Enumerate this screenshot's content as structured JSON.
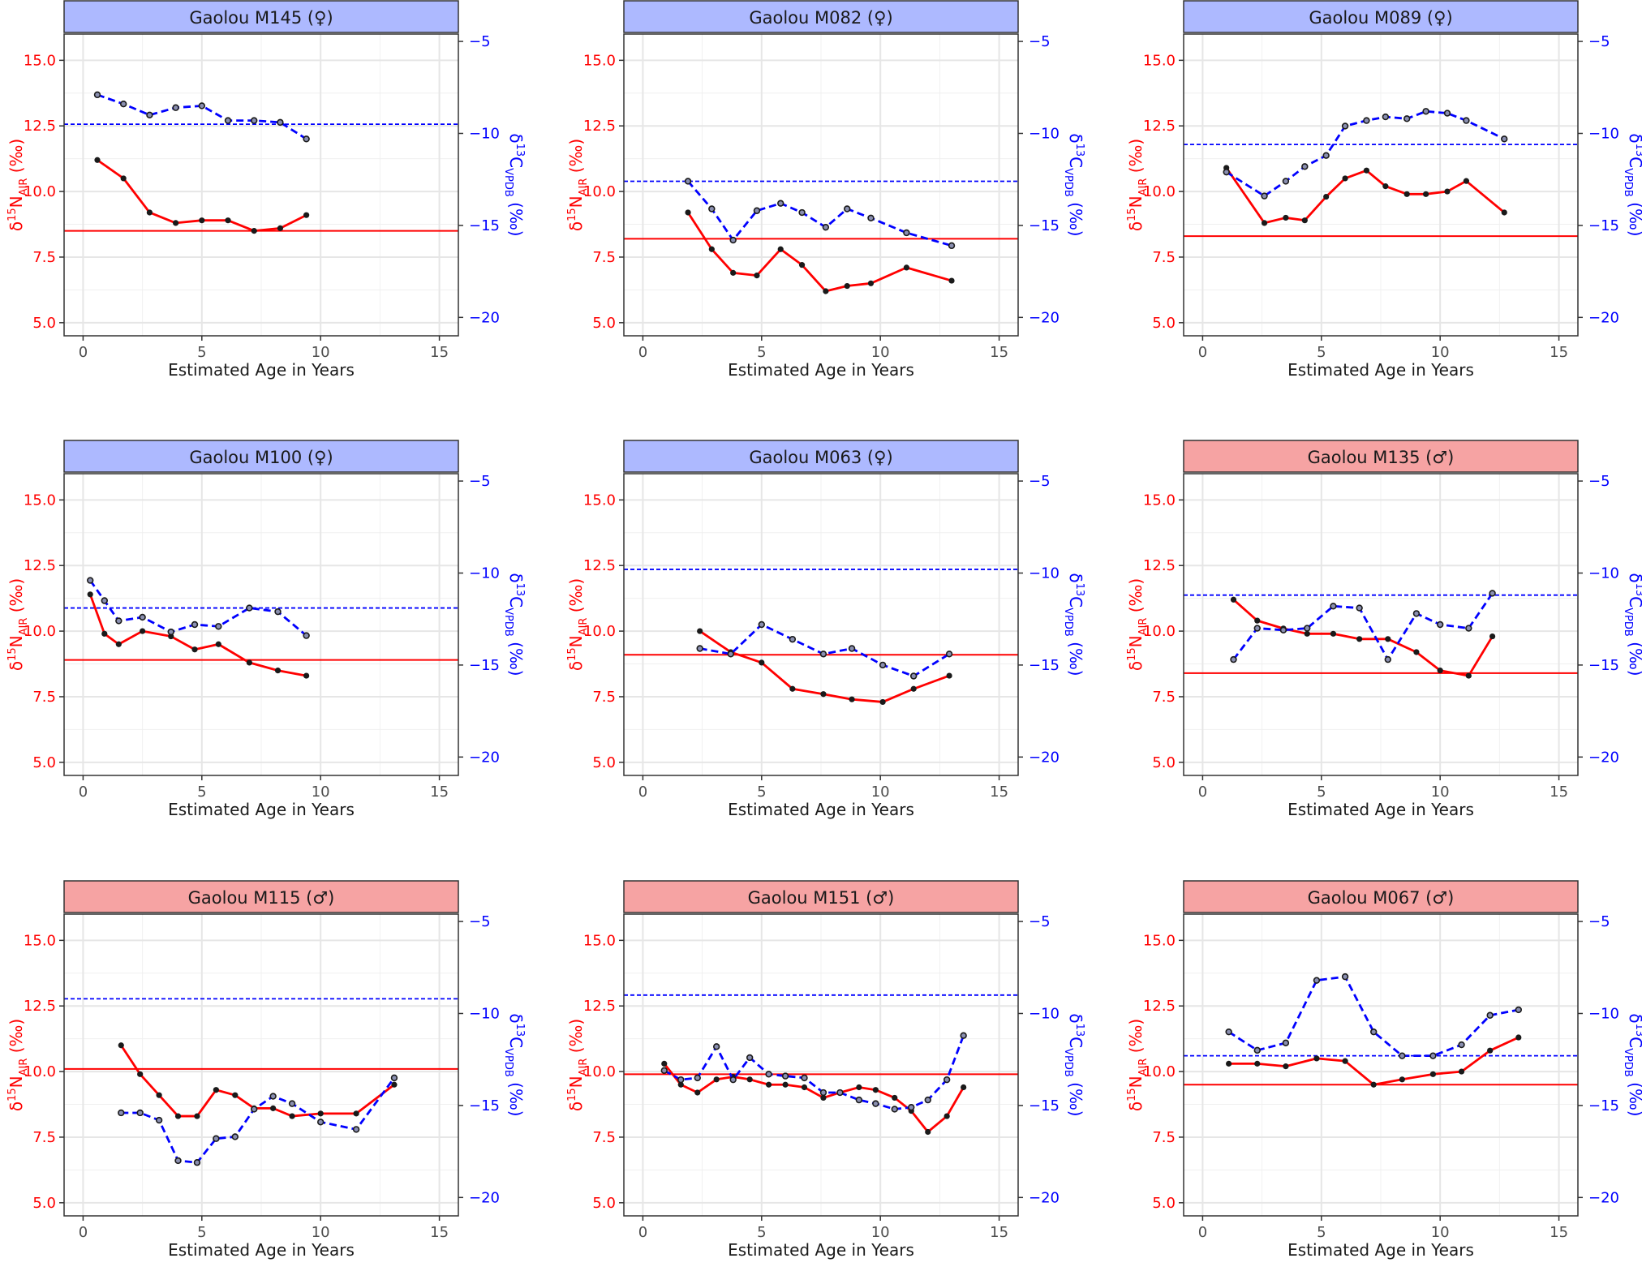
{
  "figure": {
    "colors": {
      "n_series": "#ff0000",
      "c_series": "#0000ff",
      "female_strip": "#adb9ff",
      "male_strip": "#f6a3a3",
      "grid": "#e6e6e6",
      "point": "#1a1a1a"
    }
  },
  "chart_data": [
    {
      "type": "line",
      "title": "Gaolou M145 (♀)",
      "sex": "female",
      "xlabel": "Estimated Age in Years",
      "ylabel_left": "δ15NAIR (‰)",
      "ylabel_right": "δ13CVPDB (‰)",
      "xlim": [
        -0.8,
        15.8
      ],
      "ylim": [
        4.5,
        16.0
      ],
      "ylim_right": [
        -21,
        -4.6
      ],
      "x_ticks": [
        0,
        5,
        10,
        15
      ],
      "y_ticks": [
        5.0,
        7.5,
        10.0,
        12.5,
        15.0
      ],
      "y_ticks_right": [
        -20,
        -15,
        -10,
        -5
      ],
      "series": [
        {
          "axis": "left",
          "style": "solid",
          "x": [
            0.6,
            1.7,
            2.8,
            3.9,
            5.0,
            6.1,
            7.2,
            8.3,
            9.4
          ],
          "values": [
            11.2,
            10.5,
            9.2,
            8.8,
            8.9,
            8.9,
            8.5,
            8.6,
            9.1
          ]
        },
        {
          "axis": "right",
          "style": "dashed",
          "x": [
            0.6,
            1.7,
            2.8,
            3.9,
            5.0,
            6.1,
            7.2,
            8.3,
            9.4
          ],
          "values": [
            -7.9,
            -8.4,
            -9.0,
            -8.6,
            -8.5,
            -9.3,
            -9.3,
            -9.4,
            -10.3
          ]
        }
      ],
      "hlines": [
        {
          "axis": "left",
          "value": 8.5
        },
        {
          "axis": "right",
          "value": -9.5
        }
      ]
    },
    {
      "type": "line",
      "title": "Gaolou M082 (♀)",
      "sex": "female",
      "xlabel": "Estimated Age in Years",
      "ylabel_left": "δ15NAIR (‰)",
      "ylabel_right": "δ13CVPDB (‰)",
      "xlim": [
        -0.8,
        15.8
      ],
      "ylim": [
        4.5,
        16.0
      ],
      "ylim_right": [
        -21,
        -4.6
      ],
      "x_ticks": [
        0,
        5,
        10,
        15
      ],
      "y_ticks": [
        5.0,
        7.5,
        10.0,
        12.5,
        15.0
      ],
      "y_ticks_right": [
        -20,
        -15,
        -10,
        -5
      ],
      "series": [
        {
          "axis": "left",
          "style": "solid",
          "x": [
            1.9,
            2.9,
            3.8,
            4.8,
            5.8,
            6.7,
            7.7,
            8.6,
            9.6,
            11.1,
            13.0
          ],
          "values": [
            9.2,
            7.8,
            6.9,
            6.8,
            7.8,
            7.2,
            6.2,
            6.4,
            6.5,
            7.1,
            6.6
          ]
        },
        {
          "axis": "right",
          "style": "dashed",
          "x": [
            1.9,
            2.9,
            3.8,
            4.8,
            5.8,
            6.7,
            7.7,
            8.6,
            9.6,
            11.1,
            13.0
          ],
          "values": [
            -12.6,
            -14.1,
            -15.8,
            -14.2,
            -13.8,
            -14.3,
            -15.1,
            -14.1,
            -14.6,
            -15.4,
            -16.1
          ]
        }
      ],
      "hlines": [
        {
          "axis": "left",
          "value": 8.2
        },
        {
          "axis": "right",
          "value": -12.6
        }
      ]
    },
    {
      "type": "line",
      "title": "Gaolou M089 (♀)",
      "sex": "female",
      "xlabel": "Estimated Age in Years",
      "ylabel_left": "δ15NAIR (‰)",
      "ylabel_right": "δ13CVPDB (‰)",
      "xlim": [
        -0.8,
        15.8
      ],
      "ylim": [
        4.5,
        16.0
      ],
      "ylim_right": [
        -21,
        -4.6
      ],
      "x_ticks": [
        0,
        5,
        10,
        15
      ],
      "y_ticks": [
        5.0,
        7.5,
        10.0,
        12.5,
        15.0
      ],
      "y_ticks_right": [
        -20,
        -15,
        -10,
        -5
      ],
      "series": [
        {
          "axis": "left",
          "style": "solid",
          "x": [
            1.0,
            2.6,
            3.5,
            4.3,
            5.2,
            6.0,
            6.9,
            7.7,
            8.6,
            9.4,
            10.3,
            11.1,
            12.7
          ],
          "values": [
            10.9,
            8.8,
            9.0,
            8.9,
            9.8,
            10.5,
            10.8,
            10.2,
            9.9,
            9.9,
            10.0,
            10.4,
            9.2
          ]
        },
        {
          "axis": "right",
          "style": "dashed",
          "x": [
            1.0,
            2.6,
            3.5,
            4.3,
            5.2,
            6.0,
            6.9,
            7.7,
            8.6,
            9.4,
            10.3,
            11.1,
            12.7
          ],
          "values": [
            -12.1,
            -13.4,
            -12.6,
            -11.8,
            -11.2,
            -9.6,
            -9.3,
            -9.1,
            -9.2,
            -8.8,
            -8.9,
            -9.3,
            -10.3
          ]
        }
      ],
      "hlines": [
        {
          "axis": "left",
          "value": 8.3
        },
        {
          "axis": "right",
          "value": -10.6
        }
      ]
    },
    {
      "type": "line",
      "title": "Gaolou M100 (♀)",
      "sex": "female",
      "xlabel": "Estimated Age in Years",
      "ylabel_left": "δ15NAIR (‰)",
      "ylabel_right": "δ13CVPDB (‰)",
      "xlim": [
        -0.8,
        15.8
      ],
      "ylim": [
        4.5,
        16.0
      ],
      "ylim_right": [
        -21,
        -4.6
      ],
      "x_ticks": [
        0,
        5,
        10,
        15
      ],
      "y_ticks": [
        5.0,
        7.5,
        10.0,
        12.5,
        15.0
      ],
      "y_ticks_right": [
        -20,
        -15,
        -10,
        -5
      ],
      "series": [
        {
          "axis": "left",
          "style": "solid",
          "x": [
            0.3,
            0.9,
            1.5,
            2.5,
            3.7,
            4.7,
            5.7,
            7.0,
            8.2,
            9.4
          ],
          "values": [
            11.4,
            9.9,
            9.5,
            10.0,
            9.8,
            9.3,
            9.5,
            8.8,
            8.5,
            8.3
          ]
        },
        {
          "axis": "right",
          "style": "dashed",
          "x": [
            0.3,
            0.9,
            1.5,
            2.5,
            3.7,
            4.7,
            5.7,
            7.0,
            8.2,
            9.4
          ],
          "values": [
            -10.4,
            -11.5,
            -12.6,
            -12.4,
            -13.2,
            -12.8,
            -12.9,
            -11.9,
            -12.1,
            -13.4
          ]
        }
      ],
      "hlines": [
        {
          "axis": "left",
          "value": 8.9
        },
        {
          "axis": "right",
          "value": -11.9
        }
      ]
    },
    {
      "type": "line",
      "title": "Gaolou M063 (♀)",
      "sex": "female",
      "xlabel": "Estimated Age in Years",
      "ylabel_left": "δ15NAIR (‰)",
      "ylabel_right": "δ13CVPDB (‰)",
      "xlim": [
        -0.8,
        15.8
      ],
      "ylim": [
        4.5,
        16.0
      ],
      "ylim_right": [
        -21,
        -4.6
      ],
      "x_ticks": [
        0,
        5,
        10,
        15
      ],
      "y_ticks": [
        5.0,
        7.5,
        10.0,
        12.5,
        15.0
      ],
      "y_ticks_right": [
        -20,
        -15,
        -10,
        -5
      ],
      "series": [
        {
          "axis": "left",
          "style": "solid",
          "x": [
            2.4,
            3.7,
            5.0,
            6.3,
            7.6,
            8.8,
            10.1,
            11.4,
            12.9
          ],
          "values": [
            10.0,
            9.2,
            8.8,
            7.8,
            7.6,
            7.4,
            7.3,
            7.8,
            8.3
          ]
        },
        {
          "axis": "right",
          "style": "dashed",
          "x": [
            2.4,
            3.7,
            5.0,
            6.3,
            7.6,
            8.8,
            10.1,
            11.4,
            12.9
          ],
          "values": [
            -14.1,
            -14.4,
            -12.8,
            -13.6,
            -14.4,
            -14.1,
            -15.0,
            -15.6,
            -14.4
          ]
        }
      ],
      "hlines": [
        {
          "axis": "left",
          "value": 9.1
        },
        {
          "axis": "right",
          "value": -9.8
        }
      ]
    },
    {
      "type": "line",
      "title": "Gaolou M135 (♂)",
      "sex": "male",
      "xlabel": "Estimated Age in Years",
      "ylabel_left": "δ15NAIR (‰)",
      "ylabel_right": "δ13CVPDB (‰)",
      "xlim": [
        -0.8,
        15.8
      ],
      "ylim": [
        4.5,
        16.0
      ],
      "ylim_right": [
        -21,
        -4.6
      ],
      "x_ticks": [
        0,
        5,
        10,
        15
      ],
      "y_ticks": [
        5.0,
        7.5,
        10.0,
        12.5,
        15.0
      ],
      "y_ticks_right": [
        -20,
        -15,
        -10,
        -5
      ],
      "series": [
        {
          "axis": "left",
          "style": "solid",
          "x": [
            1.3,
            2.3,
            3.4,
            4.4,
            5.5,
            6.6,
            7.8,
            9.0,
            10.0,
            11.2,
            12.2
          ],
          "values": [
            11.2,
            10.4,
            10.1,
            9.9,
            9.9,
            9.7,
            9.7,
            9.2,
            8.5,
            8.3,
            9.8
          ]
        },
        {
          "axis": "right",
          "style": "dashed",
          "x": [
            1.3,
            2.3,
            3.4,
            4.4,
            5.5,
            6.6,
            7.8,
            9.0,
            10.0,
            11.2,
            12.2
          ],
          "values": [
            -14.7,
            -13.0,
            -13.1,
            -13.0,
            -11.8,
            -11.9,
            -14.7,
            -12.2,
            -12.8,
            -13.0,
            -11.1
          ]
        }
      ],
      "hlines": [
        {
          "axis": "left",
          "value": 8.4
        },
        {
          "axis": "right",
          "value": -11.2
        }
      ]
    },
    {
      "type": "line",
      "title": "Gaolou M115 (♂)",
      "sex": "male",
      "xlabel": "Estimated Age in Years",
      "ylabel_left": "δ15NAIR (‰)",
      "ylabel_right": "δ13CVPDB (‰)",
      "xlim": [
        -0.8,
        15.8
      ],
      "ylim": [
        4.5,
        16.0
      ],
      "ylim_right": [
        -21,
        -4.6
      ],
      "x_ticks": [
        0,
        5,
        10,
        15
      ],
      "y_ticks": [
        5.0,
        7.5,
        10.0,
        12.5,
        15.0
      ],
      "y_ticks_right": [
        -20,
        -15,
        -10,
        -5
      ],
      "series": [
        {
          "axis": "left",
          "style": "solid",
          "x": [
            1.6,
            2.4,
            3.2,
            4.0,
            4.8,
            5.6,
            6.4,
            7.2,
            8.0,
            8.8,
            10.0,
            11.5,
            13.1
          ],
          "values": [
            11.0,
            9.9,
            9.1,
            8.3,
            8.3,
            9.3,
            9.1,
            8.6,
            8.6,
            8.3,
            8.4,
            8.4,
            9.5
          ]
        },
        {
          "axis": "right",
          "style": "dashed",
          "x": [
            1.6,
            2.4,
            3.2,
            4.0,
            4.8,
            5.6,
            6.4,
            7.2,
            8.0,
            8.8,
            10.0,
            11.5,
            13.1
          ],
          "values": [
            -15.4,
            -15.4,
            -15.8,
            -18.0,
            -18.1,
            -16.8,
            -16.7,
            -15.2,
            -14.5,
            -14.9,
            -15.9,
            -16.3,
            -13.5
          ]
        }
      ],
      "hlines": [
        {
          "axis": "left",
          "value": 10.1
        },
        {
          "axis": "right",
          "value": -9.2
        }
      ]
    },
    {
      "type": "line",
      "title": "Gaolou M151 (♂)",
      "sex": "male",
      "xlabel": "Estimated Age in Years",
      "ylabel_left": "δ15NAIR (‰)",
      "ylabel_right": "δ13CVPDB (‰)",
      "xlim": [
        -0.8,
        15.8
      ],
      "ylim": [
        4.5,
        16.0
      ],
      "ylim_right": [
        -21,
        -4.6
      ],
      "x_ticks": [
        0,
        5,
        10,
        15
      ],
      "y_ticks": [
        5.0,
        7.5,
        10.0,
        12.5,
        15.0
      ],
      "y_ticks_right": [
        -20,
        -15,
        -10,
        -5
      ],
      "series": [
        {
          "axis": "left",
          "style": "solid",
          "x": [
            0.9,
            1.6,
            2.3,
            3.1,
            3.8,
            4.5,
            5.3,
            6.0,
            6.8,
            7.6,
            8.3,
            9.1,
            9.8,
            10.6,
            11.3,
            12.0,
            12.8,
            13.5
          ],
          "values": [
            10.3,
            9.5,
            9.2,
            9.7,
            9.8,
            9.7,
            9.5,
            9.5,
            9.4,
            9.0,
            9.2,
            9.4,
            9.3,
            9.0,
            8.5,
            7.7,
            8.3,
            9.4
          ]
        },
        {
          "axis": "right",
          "style": "dashed",
          "x": [
            0.9,
            1.6,
            2.3,
            3.1,
            3.8,
            4.5,
            5.3,
            6.0,
            6.8,
            7.6,
            8.3,
            9.1,
            9.8,
            10.6,
            11.3,
            12.0,
            12.8,
            13.5
          ],
          "values": [
            -13.1,
            -13.6,
            -13.5,
            -11.8,
            -13.6,
            -12.4,
            -13.3,
            -13.4,
            -13.5,
            -14.3,
            -14.3,
            -14.7,
            -14.9,
            -15.2,
            -15.1,
            -14.7,
            -13.6,
            -11.2
          ]
        }
      ],
      "hlines": [
        {
          "axis": "left",
          "value": 9.9
        },
        {
          "axis": "right",
          "value": -9.0
        }
      ]
    },
    {
      "type": "line",
      "title": "Gaolou M067 (♂)",
      "sex": "male",
      "xlabel": "Estimated Age in Years",
      "ylabel_left": "δ15NAIR (‰)",
      "ylabel_right": "δ13CVPDB (‰)",
      "xlim": [
        -0.8,
        15.8
      ],
      "ylim": [
        4.5,
        16.0
      ],
      "ylim_right": [
        -21,
        -4.6
      ],
      "x_ticks": [
        0,
        5,
        10,
        15
      ],
      "y_ticks": [
        5.0,
        7.5,
        10.0,
        12.5,
        15.0
      ],
      "y_ticks_right": [
        -20,
        -15,
        -10,
        -5
      ],
      "series": [
        {
          "axis": "left",
          "style": "solid",
          "x": [
            1.1,
            2.3,
            3.5,
            4.8,
            6.0,
            7.2,
            8.4,
            9.7,
            10.9,
            12.1,
            13.3
          ],
          "values": [
            10.3,
            10.3,
            10.2,
            10.5,
            10.4,
            9.5,
            9.7,
            9.9,
            10.0,
            10.8,
            11.3
          ]
        },
        {
          "axis": "right",
          "style": "dashed",
          "x": [
            1.1,
            2.3,
            3.5,
            4.8,
            6.0,
            7.2,
            8.4,
            9.7,
            10.9,
            12.1,
            13.3
          ],
          "values": [
            -11.0,
            -12.0,
            -11.6,
            -8.2,
            -8.0,
            -11.0,
            -12.3,
            -12.3,
            -11.7,
            -10.1,
            -9.8
          ]
        }
      ],
      "hlines": [
        {
          "axis": "left",
          "value": 9.5
        },
        {
          "axis": "right",
          "value": -12.3
        }
      ]
    }
  ]
}
